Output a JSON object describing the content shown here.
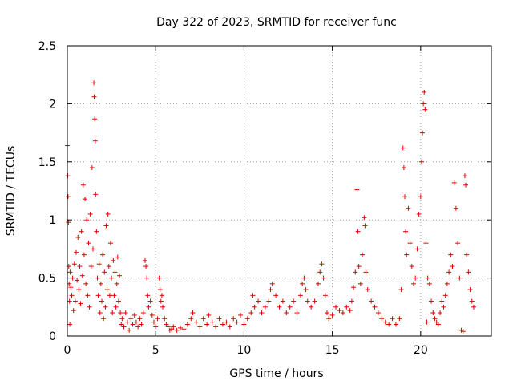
{
  "chart_data": {
    "type": "scatter",
    "title": "Day 322 of 2023, SRMTID for receiver func",
    "xlabel": "GPS time / hours",
    "ylabel": "SRMTID / TECUs",
    "xlim": [
      0,
      24
    ],
    "ylim": [
      0,
      2.5
    ],
    "xticks": [
      0,
      5,
      10,
      15,
      20
    ],
    "xtick_labels": [
      "0",
      "5",
      "10",
      "15",
      "20"
    ],
    "yticks": [
      0,
      0.5,
      1,
      1.5,
      2,
      2.5
    ],
    "ytick_labels": [
      "0",
      "0.5",
      "1",
      "1.5",
      "2",
      "2.5"
    ],
    "grid": true,
    "marker": "+",
    "color": "#e00000",
    "series": [
      {
        "name": "SRMTID",
        "points": [
          [
            0.0,
            1.64
          ],
          [
            0.02,
            1.38
          ],
          [
            0.04,
            1.2
          ],
          [
            0.06,
            0.98
          ],
          [
            0.08,
            0.6
          ],
          [
            0.1,
            0.45
          ],
          [
            0.12,
            0.3
          ],
          [
            0.14,
            0.1
          ],
          [
            0.16,
            0.55
          ],
          [
            0.2,
            0.42
          ],
          [
            0.25,
            0.35
          ],
          [
            0.3,
            0.5
          ],
          [
            0.35,
            0.22
          ],
          [
            0.4,
            0.62
          ],
          [
            0.45,
            0.3
          ],
          [
            0.5,
            0.72
          ],
          [
            0.55,
            0.48
          ],
          [
            0.6,
            0.85
          ],
          [
            0.65,
            0.4
          ],
          [
            0.7,
            0.6
          ],
          [
            0.75,
            0.28
          ],
          [
            0.8,
            0.9
          ],
          [
            0.85,
            0.52
          ],
          [
            0.9,
            1.3
          ],
          [
            0.95,
            0.7
          ],
          [
            1.0,
            1.18
          ],
          [
            1.05,
            0.45
          ],
          [
            1.1,
            1.0
          ],
          [
            1.15,
            0.35
          ],
          [
            1.2,
            0.8
          ],
          [
            1.25,
            0.25
          ],
          [
            1.3,
            1.05
          ],
          [
            1.35,
            0.6
          ],
          [
            1.4,
            1.45
          ],
          [
            1.45,
            0.75
          ],
          [
            1.5,
            2.18
          ],
          [
            1.52,
            2.06
          ],
          [
            1.55,
            1.87
          ],
          [
            1.58,
            1.68
          ],
          [
            1.6,
            1.22
          ],
          [
            1.65,
            0.9
          ],
          [
            1.7,
            0.5
          ],
          [
            1.75,
            0.35
          ],
          [
            1.8,
            0.62
          ],
          [
            1.85,
            0.2
          ],
          [
            1.9,
            0.45
          ],
          [
            1.95,
            0.3
          ],
          [
            2.0,
            0.7
          ],
          [
            2.05,
            0.15
          ],
          [
            2.1,
            0.55
          ],
          [
            2.15,
            0.25
          ],
          [
            2.2,
            0.95
          ],
          [
            2.25,
            0.4
          ],
          [
            2.3,
            1.05
          ],
          [
            2.35,
            0.6
          ],
          [
            2.4,
            0.35
          ],
          [
            2.45,
            0.8
          ],
          [
            2.5,
            0.5
          ],
          [
            2.55,
            0.2
          ],
          [
            2.6,
            0.65
          ],
          [
            2.65,
            0.35
          ],
          [
            2.7,
            0.55
          ],
          [
            2.75,
            0.25
          ],
          [
            2.8,
            0.45
          ],
          [
            2.85,
            0.68
          ],
          [
            2.9,
            0.3
          ],
          [
            2.95,
            0.52
          ],
          [
            3.0,
            0.2
          ],
          [
            3.05,
            0.1
          ],
          [
            3.1,
            0.15
          ],
          [
            3.2,
            0.08
          ],
          [
            3.3,
            0.2
          ],
          [
            3.4,
            0.12
          ],
          [
            3.5,
            0.05
          ],
          [
            3.6,
            0.15
          ],
          [
            3.7,
            0.1
          ],
          [
            3.8,
            0.18
          ],
          [
            3.9,
            0.12
          ],
          [
            4.0,
            0.08
          ],
          [
            4.1,
            0.15
          ],
          [
            4.2,
            0.1
          ],
          [
            4.3,
            0.2
          ],
          [
            4.4,
            0.65
          ],
          [
            4.45,
            0.6
          ],
          [
            4.5,
            0.5
          ],
          [
            4.55,
            0.35
          ],
          [
            4.6,
            0.25
          ],
          [
            4.7,
            0.3
          ],
          [
            4.8,
            0.18
          ],
          [
            4.9,
            0.12
          ],
          [
            5.0,
            0.08
          ],
          [
            5.1,
            0.15
          ],
          [
            5.2,
            0.5
          ],
          [
            5.25,
            0.4
          ],
          [
            5.3,
            0.3
          ],
          [
            5.35,
            0.35
          ],
          [
            5.4,
            0.25
          ],
          [
            5.5,
            0.15
          ],
          [
            5.6,
            0.1
          ],
          [
            5.7,
            0.08
          ],
          [
            5.8,
            0.05
          ],
          [
            5.9,
            0.06
          ],
          [
            6.0,
            0.08
          ],
          [
            6.2,
            0.05
          ],
          [
            6.4,
            0.07
          ],
          [
            6.6,
            0.06
          ],
          [
            6.8,
            0.1
          ],
          [
            7.0,
            0.15
          ],
          [
            7.1,
            0.2
          ],
          [
            7.3,
            0.12
          ],
          [
            7.5,
            0.08
          ],
          [
            7.7,
            0.15
          ],
          [
            7.9,
            0.1
          ],
          [
            8.0,
            0.18
          ],
          [
            8.2,
            0.12
          ],
          [
            8.4,
            0.08
          ],
          [
            8.6,
            0.15
          ],
          [
            8.8,
            0.1
          ],
          [
            9.0,
            0.12
          ],
          [
            9.2,
            0.08
          ],
          [
            9.4,
            0.15
          ],
          [
            9.6,
            0.12
          ],
          [
            9.8,
            0.18
          ],
          [
            10.0,
            0.1
          ],
          [
            10.2,
            0.15
          ],
          [
            10.4,
            0.2
          ],
          [
            10.5,
            0.35
          ],
          [
            10.6,
            0.25
          ],
          [
            10.8,
            0.3
          ],
          [
            11.0,
            0.2
          ],
          [
            11.2,
            0.25
          ],
          [
            11.4,
            0.3
          ],
          [
            11.5,
            0.4
          ],
          [
            11.6,
            0.45
          ],
          [
            11.8,
            0.35
          ],
          [
            12.0,
            0.25
          ],
          [
            12.2,
            0.3
          ],
          [
            12.4,
            0.2
          ],
          [
            12.6,
            0.25
          ],
          [
            12.8,
            0.3
          ],
          [
            13.0,
            0.2
          ],
          [
            13.2,
            0.35
          ],
          [
            13.3,
            0.45
          ],
          [
            13.4,
            0.5
          ],
          [
            13.5,
            0.4
          ],
          [
            13.6,
            0.3
          ],
          [
            13.8,
            0.25
          ],
          [
            14.0,
            0.3
          ],
          [
            14.2,
            0.45
          ],
          [
            14.3,
            0.55
          ],
          [
            14.4,
            0.62
          ],
          [
            14.5,
            0.5
          ],
          [
            14.6,
            0.35
          ],
          [
            14.7,
            0.2
          ],
          [
            14.8,
            0.15
          ],
          [
            15.0,
            0.18
          ],
          [
            15.2,
            0.25
          ],
          [
            15.4,
            0.22
          ],
          [
            15.6,
            0.2
          ],
          [
            15.8,
            0.25
          ],
          [
            16.0,
            0.22
          ],
          [
            16.1,
            0.3
          ],
          [
            16.2,
            0.42
          ],
          [
            16.3,
            0.55
          ],
          [
            16.4,
            1.26
          ],
          [
            16.45,
            0.9
          ],
          [
            16.5,
            0.6
          ],
          [
            16.6,
            0.45
          ],
          [
            16.7,
            0.7
          ],
          [
            16.8,
            1.02
          ],
          [
            16.85,
            0.95
          ],
          [
            16.9,
            0.55
          ],
          [
            17.0,
            0.4
          ],
          [
            17.2,
            0.3
          ],
          [
            17.4,
            0.25
          ],
          [
            17.6,
            0.2
          ],
          [
            17.8,
            0.15
          ],
          [
            18.0,
            0.12
          ],
          [
            18.2,
            0.1
          ],
          [
            18.4,
            0.15
          ],
          [
            18.6,
            0.1
          ],
          [
            18.8,
            0.15
          ],
          [
            18.9,
            0.4
          ],
          [
            19.0,
            1.62
          ],
          [
            19.05,
            1.45
          ],
          [
            19.1,
            1.2
          ],
          [
            19.15,
            0.9
          ],
          [
            19.2,
            0.7
          ],
          [
            19.3,
            1.1
          ],
          [
            19.4,
            0.8
          ],
          [
            19.5,
            0.6
          ],
          [
            19.6,
            0.45
          ],
          [
            19.7,
            0.5
          ],
          [
            19.8,
            0.75
          ],
          [
            19.9,
            1.05
          ],
          [
            20.0,
            1.2
          ],
          [
            20.05,
            1.5
          ],
          [
            20.1,
            1.75
          ],
          [
            20.15,
            2.0
          ],
          [
            20.2,
            2.1
          ],
          [
            20.25,
            1.95
          ],
          [
            20.3,
            0.8
          ],
          [
            20.35,
            0.12
          ],
          [
            20.4,
            0.5
          ],
          [
            20.5,
            0.45
          ],
          [
            20.6,
            0.3
          ],
          [
            20.7,
            0.2
          ],
          [
            20.8,
            0.15
          ],
          [
            20.9,
            0.12
          ],
          [
            21.0,
            0.1
          ],
          [
            21.1,
            0.2
          ],
          [
            21.2,
            0.3
          ],
          [
            21.3,
            0.25
          ],
          [
            21.4,
            0.35
          ],
          [
            21.5,
            0.45
          ],
          [
            21.6,
            0.55
          ],
          [
            21.7,
            0.7
          ],
          [
            21.8,
            0.6
          ],
          [
            21.9,
            1.32
          ],
          [
            22.0,
            1.1
          ],
          [
            22.1,
            0.8
          ],
          [
            22.2,
            0.5
          ],
          [
            22.3,
            0.05
          ],
          [
            22.4,
            0.04
          ],
          [
            22.5,
            1.38
          ],
          [
            22.55,
            1.3
          ],
          [
            22.6,
            0.7
          ],
          [
            22.7,
            0.55
          ],
          [
            22.8,
            0.4
          ],
          [
            22.9,
            0.3
          ],
          [
            23.0,
            0.25
          ]
        ]
      }
    ]
  }
}
